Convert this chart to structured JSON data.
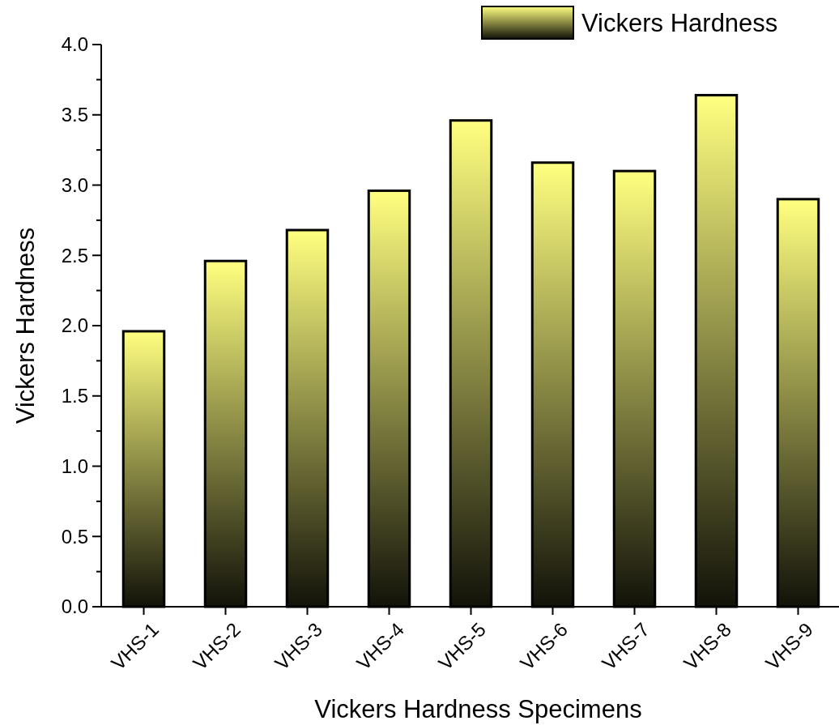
{
  "chart_data": {
    "type": "bar",
    "xlabel": "Vickers Hardness Specimens",
    "ylabel": "Vickers Hardness",
    "categories": [
      "VHS-1",
      "VHS-2",
      "VHS-3",
      "VHS-4",
      "VHS-5",
      "VHS-6",
      "VHS-7",
      "VHS-8",
      "VHS-9"
    ],
    "series": [
      {
        "name": "Vickers Hardness",
        "color": "#ffff80",
        "values": [
          1.96,
          2.46,
          2.68,
          2.96,
          3.46,
          3.16,
          3.1,
          3.64,
          2.9
        ]
      }
    ],
    "ylim": [
      0,
      4
    ],
    "yticks": [
      {
        "value": 0,
        "label": "0.0"
      },
      {
        "value": 0.25,
        "label": null
      },
      0.5,
      {
        "value": 0.75,
        "label": null
      },
      {
        "value": 1,
        "label": "1.0"
      },
      {
        "value": 1.25,
        "label": null
      },
      1.5,
      {
        "value": 1.75,
        "label": null
      },
      {
        "value": 2,
        "label": "2.0"
      },
      {
        "value": 2.25,
        "label": null
      },
      2.5,
      {
        "value": 2.75,
        "label": null
      },
      {
        "value": 3,
        "label": "3.0"
      },
      {
        "value": 3.25,
        "label": null
      },
      3.5,
      {
        "value": 3.75,
        "label": null
      },
      {
        "value": 4,
        "label": "4.0"
      }
    ],
    "grid": false,
    "legend": "top right"
  }
}
